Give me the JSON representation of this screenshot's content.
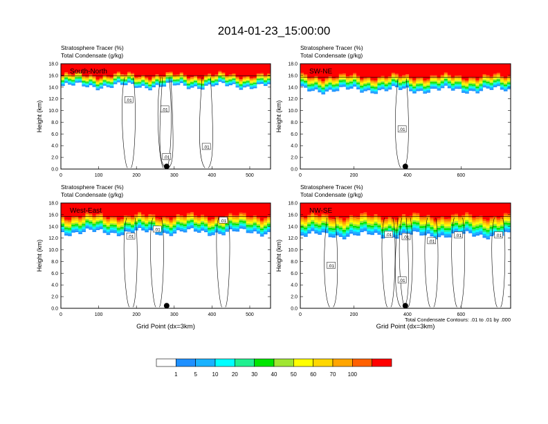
{
  "figure": {
    "title": "2014-01-23_15:00:00",
    "contour_note": "Total Condensate Contours: .01 to .01 by .000"
  },
  "colorbar": {
    "colors": [
      "#ffffff",
      "#1e90ff",
      "#1ab2ff",
      "#00ffff",
      "#20f090",
      "#00e600",
      "#a0e632",
      "#ffff00",
      "#ffd700",
      "#ffa500",
      "#ff6000",
      "#ff0000"
    ],
    "labels": [
      "1",
      "5",
      "10",
      "20",
      "30",
      "40",
      "50",
      "60",
      "70",
      "100"
    ]
  },
  "chart_data": [
    {
      "type": "heatmap",
      "panel_label": "South-North",
      "header_line1": "Stratosphere Tracer   (%)",
      "header_line2": "Total Condensate   (g/kg)",
      "ylabel": "Height (km)",
      "xlabel": "",
      "xlim": [
        0,
        555
      ],
      "ylim": [
        0,
        18
      ],
      "x_ticks": [
        0,
        100,
        200,
        300,
        400,
        500
      ],
      "y_ticks": [
        "0.0",
        "2.0",
        "4.0",
        "6.0",
        "8.0",
        "10.0",
        "12.0",
        "14.0",
        "16.0",
        "18.0"
      ],
      "tracer_transition_km": [
        14.2,
        16.2
      ],
      "marker_x": 280,
      "contour_labels": [
        {
          "x": 180,
          "y": 11.8,
          "text": ".01"
        },
        {
          "x": 275,
          "y": 10.2,
          "text": ".01"
        },
        {
          "x": 385,
          "y": 3.8,
          "text": ".01"
        },
        {
          "x": 280,
          "y": 2.1,
          "text": ".01"
        }
      ]
    },
    {
      "type": "heatmap",
      "panel_label": "SW-NE",
      "header_line1": "Stratosphere Tracer   (%)",
      "header_line2": "Total Condensate   (g/kg)",
      "ylabel": "Height (km)",
      "xlabel": "",
      "xlim": [
        0,
        785
      ],
      "ylim": [
        0,
        18
      ],
      "x_ticks": [
        0,
        200,
        400,
        600
      ],
      "y_ticks": [
        "0.0",
        "2.0",
        "4.0",
        "6.0",
        "8.0",
        "10.0",
        "12.0",
        "14.0",
        "16.0",
        "18.0"
      ],
      "tracer_transition_km": [
        13.5,
        16.0
      ],
      "marker_x": 392,
      "contour_labels": [
        {
          "x": 380,
          "y": 6.8,
          "text": ".01"
        }
      ]
    },
    {
      "type": "heatmap",
      "panel_label": "West-East",
      "header_line1": "Stratosphere Tracer   (%)",
      "header_line2": "Total Condensate   (g/kg)",
      "ylabel": "Height (km)",
      "xlabel": "Grid Point (dx=3km)",
      "xlim": [
        0,
        555
      ],
      "ylim": [
        0,
        18
      ],
      "x_ticks": [
        0,
        100,
        200,
        300,
        400,
        500
      ],
      "y_ticks": [
        "0.0",
        "2.0",
        "4.0",
        "6.0",
        "8.0",
        "10.0",
        "12.0",
        "14.0",
        "16.0",
        "18.0"
      ],
      "tracer_transition_km": [
        13.0,
        16.0
      ],
      "marker_x": 280,
      "contour_labels": [
        {
          "x": 185,
          "y": 12.3,
          "text": ".01"
        },
        {
          "x": 255,
          "y": 13.5,
          "text": ".01"
        },
        {
          "x": 430,
          "y": 15.0,
          "text": ".01"
        }
      ]
    },
    {
      "type": "heatmap",
      "panel_label": "NW-SE",
      "header_line1": "Stratosphere Tracer   (%)",
      "header_line2": "Total Condensate   (g/kg)",
      "ylabel": "Height (km)",
      "xlabel": "Grid Point (dx=3km)",
      "xlim": [
        0,
        785
      ],
      "ylim": [
        0,
        18
      ],
      "x_ticks": [
        0,
        200,
        400,
        600
      ],
      "y_ticks": [
        "0.0",
        "2.0",
        "4.0",
        "6.0",
        "8.0",
        "10.0",
        "12.0",
        "14.0",
        "16.0",
        "18.0"
      ],
      "tracer_transition_km": [
        12.5,
        16.0
      ],
      "marker_x": 392,
      "contour_labels": [
        {
          "x": 330,
          "y": 12.6,
          "text": ".01"
        },
        {
          "x": 395,
          "y": 12.2,
          "text": ".01"
        },
        {
          "x": 490,
          "y": 11.5,
          "text": ".01"
        },
        {
          "x": 590,
          "y": 12.5,
          "text": ".01"
        },
        {
          "x": 740,
          "y": 12.5,
          "text": ".01"
        },
        {
          "x": 115,
          "y": 7.3,
          "text": ".01"
        },
        {
          "x": 380,
          "y": 4.8,
          "text": ".01"
        }
      ]
    }
  ]
}
